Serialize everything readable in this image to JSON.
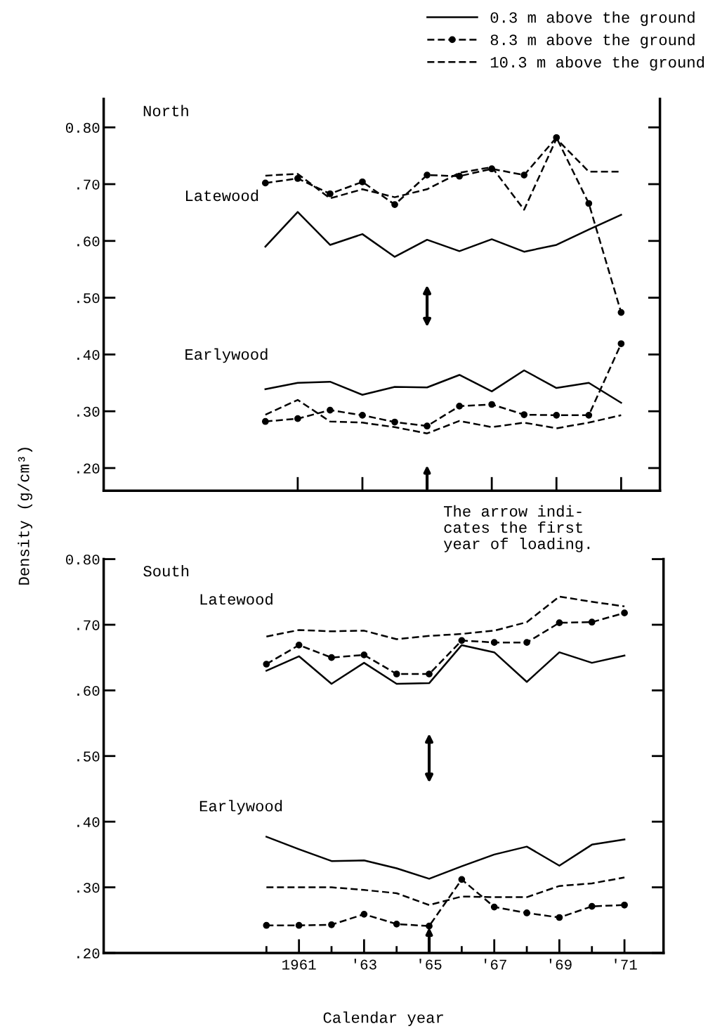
{
  "chart_data": [
    {
      "type": "line",
      "title": "North",
      "ylabel": "Density (g/cm³)",
      "legend": "top right",
      "tick_labels": "y",
      "x": [
        1960,
        1961,
        1962,
        1963,
        1964,
        1965,
        1966,
        1967,
        1968,
        1969,
        1970,
        1971
      ],
      "xlim": [
        1955,
        1972.2
      ],
      "xticks": [
        1961,
        1963,
        1965,
        1967,
        1969,
        1971
      ],
      "ylim": [
        0.16,
        0.85
      ],
      "yticks": [
        {
          "value": 0.8,
          "label": "0.80"
        },
        {
          "value": 0.7,
          "label": ".70"
        },
        {
          "value": 0.6,
          "label": ".60"
        },
        {
          "value": 0.5,
          "label": ".50"
        },
        {
          "value": 0.4,
          "label": ".40"
        },
        {
          "value": 0.3,
          "label": ".30"
        },
        {
          "value": 0.2,
          "label": ".20"
        }
      ],
      "grid": false,
      "series": [
        {
          "name": "0.3 m above the ground",
          "color": "#000000",
          "line_style": "solid",
          "marker": "none",
          "values": [
            0.59,
            0.651,
            0.593,
            0.612,
            0.572,
            0.602,
            0.582,
            0.603,
            0.581,
            0.593,
            0.62,
            0.646
          ]
        },
        {
          "name": "8.3 m above the ground",
          "color": "#000000",
          "line_style": "dashed",
          "marker": "circle",
          "values": [
            0.702,
            0.71,
            0.683,
            0.704,
            0.664,
            0.716,
            0.714,
            0.727,
            0.716,
            0.782,
            0.666,
            0.474
          ]
        },
        {
          "name": "10.3 m above the ground",
          "color": "#000000",
          "line_style": "dashed",
          "marker": "none",
          "values": [
            0.715,
            0.718,
            0.675,
            0.691,
            0.677,
            0.691,
            0.72,
            0.73,
            0.655,
            0.78,
            0.722,
            0.722
          ]
        },
        {
          "color": "#000000",
          "line_style": "solid",
          "marker": "none",
          "values": [
            0.339,
            0.35,
            0.352,
            0.329,
            0.343,
            0.342,
            0.364,
            0.335,
            0.372,
            0.341,
            0.35,
            0.315
          ]
        },
        {
          "color": "#000000",
          "line_style": "dashed",
          "marker": "circle",
          "values": [
            0.282,
            0.287,
            0.302,
            0.293,
            0.281,
            0.274,
            0.309,
            0.312,
            0.294,
            0.293,
            0.293,
            0.419
          ]
        },
        {
          "color": "#000000",
          "line_style": "dashed",
          "marker": "none",
          "values": [
            0.294,
            0.32,
            0.282,
            0.28,
            0.272,
            0.261,
            0.283,
            0.272,
            0.28,
            0.27,
            0.28,
            0.293
          ]
        }
      ],
      "annotations": [
        "Latewood",
        "Earlywood"
      ]
    },
    {
      "type": "line",
      "title": "South",
      "xlabel": "Calendar year",
      "legend": false,
      "x": [
        1960,
        1961,
        1962,
        1963,
        1964,
        1965,
        1966,
        1967,
        1968,
        1969,
        1970,
        1971
      ],
      "xlim": [
        1955,
        1972.2
      ],
      "xticks": [
        {
          "value": 1960,
          "label": null
        },
        1961,
        {
          "value": 1962,
          "label": null
        },
        {
          "value": 1963,
          "label": "'63"
        },
        {
          "value": 1964,
          "label": null
        },
        {
          "value": 1965,
          "label": "'65"
        },
        {
          "value": 1966,
          "label": null
        },
        {
          "value": 1967,
          "label": "'67"
        },
        {
          "value": 1968,
          "label": null
        },
        {
          "value": 1969,
          "label": "'69"
        },
        {
          "value": 1970,
          "label": null
        },
        {
          "value": 1971,
          "label": "'71"
        }
      ],
      "ylim": [
        0.2,
        0.8
      ],
      "yticks": [
        {
          "value": 0.8,
          "label": "0.80"
        },
        {
          "value": 0.7,
          "label": ".70"
        },
        {
          "value": 0.6,
          "label": ".60"
        },
        {
          "value": 0.5,
          "label": ".50"
        },
        {
          "value": 0.4,
          "label": ".40"
        },
        {
          "value": 0.3,
          "label": ".30"
        },
        {
          "value": 0.2,
          "label": ".20"
        }
      ],
      "grid": false,
      "series": [
        {
          "color": "#000000",
          "line_style": "solid",
          "marker": "none",
          "values": [
            0.63,
            0.652,
            0.61,
            0.642,
            0.61,
            0.611,
            0.669,
            0.658,
            0.613,
            0.658,
            0.642,
            0.653
          ]
        },
        {
          "color": "#000000",
          "line_style": "dashed",
          "marker": "circle",
          "values": [
            0.64,
            0.669,
            0.65,
            0.654,
            0.625,
            0.625,
            0.676,
            0.673,
            0.673,
            0.703,
            0.704,
            0.718
          ]
        },
        {
          "color": "#000000",
          "line_style": "dashed",
          "marker": "none",
          "values": [
            0.682,
            0.692,
            0.69,
            0.691,
            0.678,
            0.683,
            0.686,
            0.691,
            0.704,
            0.743,
            0.735,
            0.728
          ]
        },
        {
          "color": "#000000",
          "line_style": "solid",
          "marker": "none",
          "values": [
            0.377,
            0.358,
            0.34,
            0.341,
            0.329,
            0.313,
            0.332,
            0.35,
            0.362,
            0.333,
            0.365,
            0.373
          ]
        },
        {
          "color": "#000000",
          "line_style": "dashed",
          "marker": "circle",
          "values": [
            0.242,
            0.242,
            0.243,
            0.259,
            0.244,
            0.241,
            0.312,
            0.27,
            0.261,
            0.254,
            0.271,
            0.273
          ]
        },
        {
          "color": "#000000",
          "line_style": "dashed",
          "marker": "none",
          "values": [
            0.3,
            0.3,
            0.3,
            0.296,
            0.291,
            0.273,
            0.286,
            0.285,
            0.285,
            0.302,
            0.306,
            0.315
          ]
        }
      ],
      "annotations": [
        "Latewood",
        "Earlywood",
        "The arrow indi-\ncates the first\nyear of loading."
      ]
    }
  ]
}
